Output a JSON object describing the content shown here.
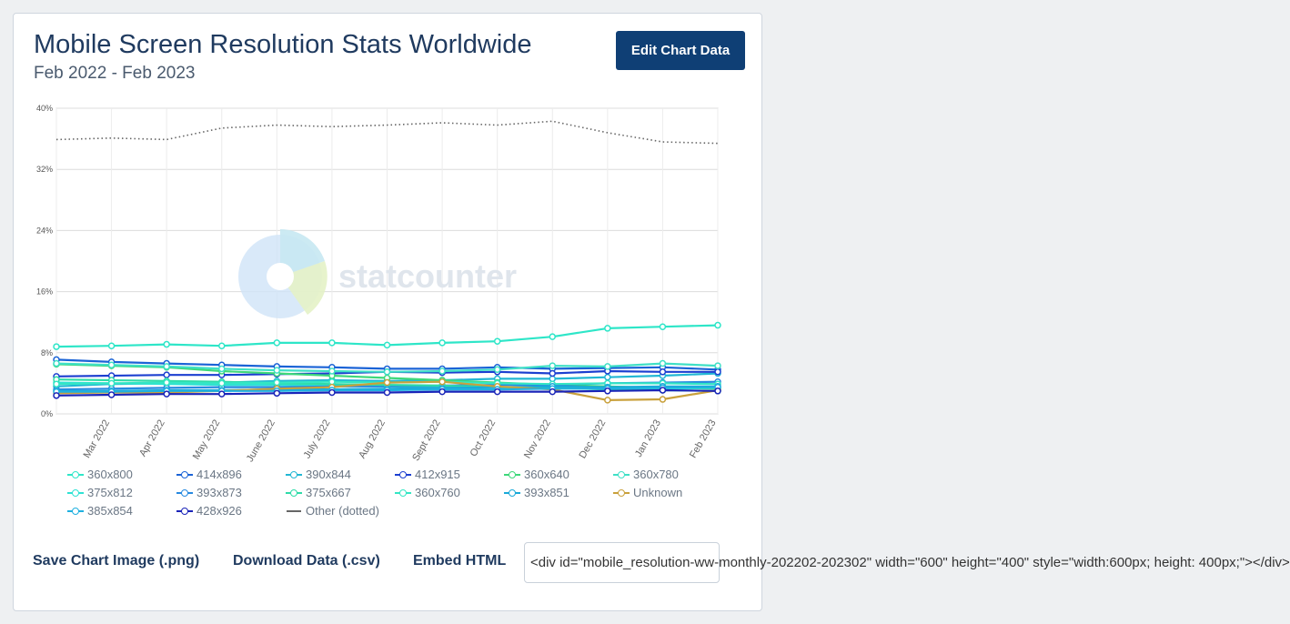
{
  "header": {
    "title": "Mobile Screen Resolution Stats Worldwide",
    "subtitle": "Feb 2022 - Feb 2023",
    "edit_button": "Edit Chart Data"
  },
  "watermark": "statcounter",
  "footer": {
    "save_image": "Save Chart Image (.png)",
    "download_data": "Download Data (.csv)",
    "embed_html": "Embed HTML",
    "embed_code": "<div id=\"mobile_resolution-ww-monthly-202202-202302\" width=\"600\" height=\"400\" style=\"width:600px; height: 400px;\"></div>"
  },
  "chart_data": {
    "type": "line",
    "title": "Mobile Screen Resolution Stats Worldwide",
    "subtitle": "Feb 2022 - Feb 2023",
    "x_tick_labels": [
      "Mar 2022",
      "Apr 2022",
      "May 2022",
      "June 2022",
      "July 2022",
      "Aug 2022",
      "Sept 2022",
      "Oct 2022",
      "Nov 2022",
      "Dec 2022",
      "Jan 2023",
      "Feb 2023"
    ],
    "y_tick_labels": [
      "0%",
      "8%",
      "16%",
      "24%",
      "32%",
      "40%"
    ],
    "ylim": [
      0,
      40
    ],
    "legend_position": "bottom",
    "series": [
      {
        "name": "360x800",
        "color": "#2ee6c8",
        "values": [
          8.8,
          8.9,
          9.1,
          8.9,
          9.3,
          9.3,
          9.0,
          9.3,
          9.5,
          10.1,
          11.2,
          11.4,
          11.6
        ]
      },
      {
        "name": "414x896",
        "color": "#1a63d6",
        "values": [
          7.1,
          6.8,
          6.6,
          6.4,
          6.2,
          6.1,
          5.9,
          5.9,
          6.1,
          5.9,
          6.0,
          6.1,
          5.8
        ]
      },
      {
        "name": "390x844",
        "color": "#22b7d4",
        "values": [
          3.6,
          3.9,
          4.0,
          4.1,
          4.3,
          4.4,
          4.3,
          4.4,
          4.6,
          4.6,
          4.8,
          5.0,
          5.3
        ]
      },
      {
        "name": "412x915",
        "color": "#1c3fd0",
        "values": [
          4.9,
          5.0,
          5.1,
          5.1,
          5.2,
          5.3,
          5.5,
          5.4,
          5.5,
          5.3,
          5.6,
          5.5,
          5.5
        ]
      },
      {
        "name": "360x640",
        "color": "#3ed87a",
        "values": [
          6.5,
          6.3,
          6.1,
          5.6,
          5.3,
          5.0,
          4.7,
          4.4,
          4.1,
          3.8,
          3.6,
          3.4,
          3.3
        ]
      },
      {
        "name": "360x780",
        "color": "#3fe0c6",
        "values": [
          6.6,
          6.4,
          6.2,
          5.9,
          5.7,
          5.6,
          5.5,
          5.6,
          5.8,
          6.3,
          6.2,
          6.6,
          6.3
        ]
      },
      {
        "name": "375x812",
        "color": "#2fe2d4",
        "values": [
          4.1,
          4.0,
          3.9,
          3.8,
          3.8,
          3.7,
          3.6,
          3.5,
          3.5,
          3.5,
          3.4,
          3.3,
          3.4
        ]
      },
      {
        "name": "393x873",
        "color": "#2689e0",
        "values": [
          3.2,
          3.3,
          3.4,
          3.5,
          3.5,
          3.6,
          3.6,
          3.7,
          3.8,
          3.8,
          4.0,
          4.1,
          4.2
        ]
      },
      {
        "name": "375x667",
        "color": "#2fdba8",
        "values": [
          4.5,
          4.4,
          4.3,
          4.2,
          4.0,
          3.9,
          3.8,
          3.7,
          3.5,
          3.4,
          3.2,
          3.1,
          3.0
        ]
      },
      {
        "name": "360x760",
        "color": "#34e6c4",
        "values": [
          3.9,
          4.0,
          4.1,
          4.0,
          4.1,
          4.2,
          4.1,
          4.2,
          4.0,
          3.9,
          4.0,
          4.0,
          3.9
        ]
      },
      {
        "name": "393x851",
        "color": "#19a9d8",
        "values": [
          3.0,
          3.0,
          3.1,
          3.1,
          3.2,
          3.2,
          3.3,
          3.4,
          3.5,
          3.6,
          3.5,
          3.6,
          3.6
        ]
      },
      {
        "name": "Unknown",
        "color": "#c9a13c",
        "values": [
          2.7,
          2.8,
          2.8,
          3.0,
          3.3,
          3.5,
          4.1,
          4.2,
          3.6,
          3.2,
          1.8,
          1.9,
          3.1
        ]
      },
      {
        "name": "385x854",
        "color": "#1fb0e0",
        "values": [
          2.9,
          2.9,
          3.0,
          3.0,
          3.0,
          3.1,
          3.1,
          3.2,
          3.2,
          3.3,
          3.3,
          3.4,
          3.5
        ]
      },
      {
        "name": "428x926",
        "color": "#1a24b8",
        "values": [
          2.4,
          2.5,
          2.6,
          2.6,
          2.7,
          2.8,
          2.8,
          2.9,
          2.9,
          2.9,
          3.0,
          3.1,
          3.0
        ]
      },
      {
        "name": "Other (dotted)",
        "color": "#666666",
        "dotted": true,
        "values": [
          35.9,
          36.1,
          35.9,
          37.4,
          37.8,
          37.6,
          37.8,
          38.1,
          37.8,
          38.3,
          36.8,
          35.6,
          35.4
        ]
      }
    ]
  }
}
